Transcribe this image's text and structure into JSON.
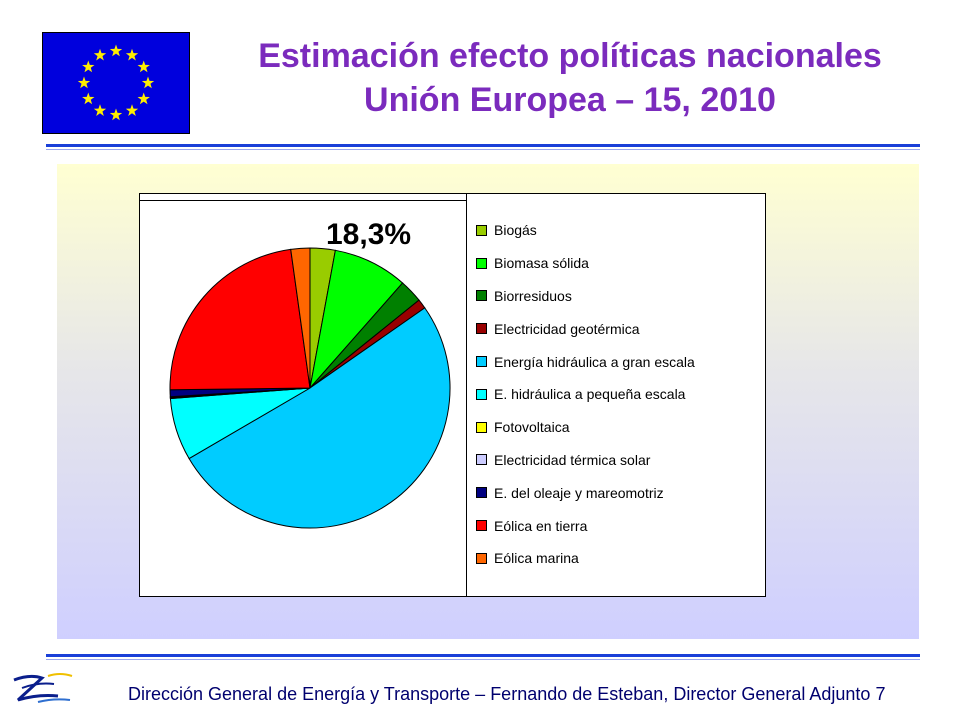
{
  "header": {
    "title_line1": "Estimación efecto políticas nacionales",
    "title_line2": "Unión Europea – 15, 2010",
    "flag_icon": "eu-flag-icon"
  },
  "chart_data": {
    "type": "pie",
    "callout": "18,3%",
    "legend_placement": "right",
    "slices": [
      {
        "label": "Biogás",
        "value": 2.9,
        "color": "#99cc00"
      },
      {
        "label": "Biomasa sólida",
        "value": 8.6,
        "color": "#00ff00"
      },
      {
        "label": "Biorresiduos",
        "value": 2.7,
        "color": "#008000"
      },
      {
        "label": "Electricidad geotérmica",
        "value": 1.1,
        "color": "#990000"
      },
      {
        "label": "Energía hidráulica a gran escala",
        "value": 51.3,
        "color": "#00ccff"
      },
      {
        "label": "E. hidráulica a pequeña escala",
        "value": 7.2,
        "color": "#00ffff"
      },
      {
        "label": "Fotovoltaica",
        "value": 0.1,
        "color": "#ffff00"
      },
      {
        "label": "Electricidad térmica solar",
        "value": 0.1,
        "color": "#ccccff"
      },
      {
        "label": "E. del oleaje y mareomotriz",
        "value": 0.8,
        "color": "#000080"
      },
      {
        "label": "Eólica en tierra",
        "value": 23.0,
        "color": "#ff0000"
      },
      {
        "label": "Eólica marina",
        "value": 2.2,
        "color": "#ff6600"
      }
    ]
  },
  "footer": {
    "text": "Dirección General de Energía y Transporte – Fernando de Esteban, Director General Adjunto",
    "page_number": "7",
    "logo_icon": "dg-tren-logo-icon"
  }
}
